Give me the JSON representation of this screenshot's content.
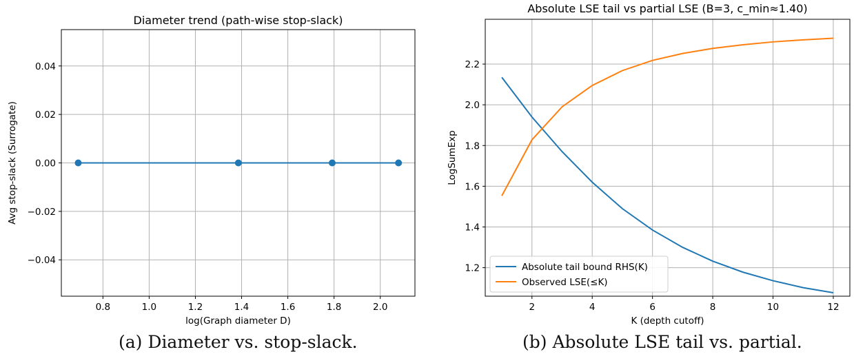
{
  "chart_data": [
    {
      "type": "line",
      "title": "Diameter trend (path-wise stop-slack)",
      "xlabel": "log(Graph diameter D)",
      "ylabel": "Avg stop-slack (Surrogate)",
      "xlim": [
        0.62,
        2.15
      ],
      "ylim": [
        -0.055,
        0.055
      ],
      "xticks": [
        0.8,
        1.0,
        1.2,
        1.4,
        1.6,
        1.8,
        2.0
      ],
      "xtick_labels": [
        "0.8",
        "1.0",
        "1.2",
        "1.4",
        "1.6",
        "1.8",
        "2.0"
      ],
      "yticks": [
        -0.04,
        -0.02,
        0.0,
        0.02,
        0.04
      ],
      "ytick_labels": [
        "−0.04",
        "−0.02",
        "0.00",
        "0.02",
        "0.04"
      ],
      "grid": true,
      "series": [
        {
          "color": "#1f77b4",
          "marker": "circle",
          "x": [
            0.693,
            1.386,
            1.792,
            2.079
          ],
          "y": [
            0.0,
            0.0,
            0.0,
            0.0
          ]
        }
      ]
    },
    {
      "type": "line",
      "title": "Absolute LSE tail vs partial LSE (B=3, c_min≈1.40)",
      "xlabel": "K (depth cutoff)",
      "ylabel": "LogSumExp",
      "xlim": [
        0.45,
        12.55
      ],
      "ylim": [
        1.06,
        2.42
      ],
      "xticks": [
        2,
        4,
        6,
        8,
        10,
        12
      ],
      "xtick_labels": [
        "2",
        "4",
        "6",
        "8",
        "10",
        "12"
      ],
      "yticks": [
        1.2,
        1.4,
        1.6,
        1.8,
        2.0,
        2.2
      ],
      "ytick_labels": [
        "1.2",
        "1.4",
        "1.6",
        "1.8",
        "2.0",
        "2.2"
      ],
      "grid": true,
      "legend_position": "lower-left",
      "series": [
        {
          "name": "Absolute tail bound RHS(K)",
          "color": "#1f77b4",
          "x": [
            1,
            2,
            3,
            4,
            5,
            6,
            7,
            8,
            9,
            10,
            11,
            12
          ],
          "y": [
            2.135,
            1.94,
            1.77,
            1.62,
            1.49,
            1.385,
            1.3,
            1.232,
            1.178,
            1.136,
            1.102,
            1.077
          ]
        },
        {
          "name": "Observed LSE(≤K)",
          "color": "#ff7f0e",
          "x": [
            1,
            2,
            3,
            4,
            5,
            6,
            7,
            8,
            9,
            10,
            11,
            12
          ],
          "y": [
            1.553,
            1.828,
            1.99,
            2.095,
            2.168,
            2.218,
            2.252,
            2.277,
            2.295,
            2.309,
            2.319,
            2.327
          ]
        }
      ]
    }
  ],
  "captions": {
    "left": "(a) Diameter vs. stop-slack.",
    "right": "(b) Absolute LSE tail vs. partial."
  }
}
